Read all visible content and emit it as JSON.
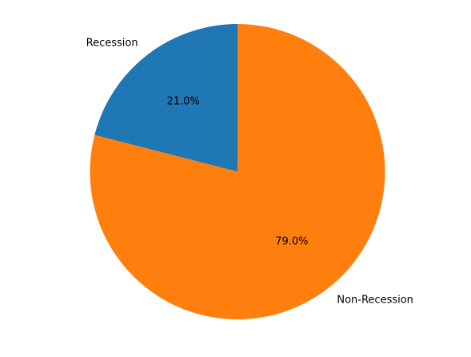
{
  "chart_data": {
    "type": "pie",
    "title": "",
    "categories": [
      "Recession",
      "Non-Recession"
    ],
    "values": [
      21.0,
      79.0
    ],
    "labels": [
      "21.0%",
      "79.0%"
    ],
    "colors": [
      "#1f77b4",
      "#ff7f0e"
    ],
    "start_angle_deg": 90,
    "direction": "counterclockwise",
    "legend": "none"
  }
}
